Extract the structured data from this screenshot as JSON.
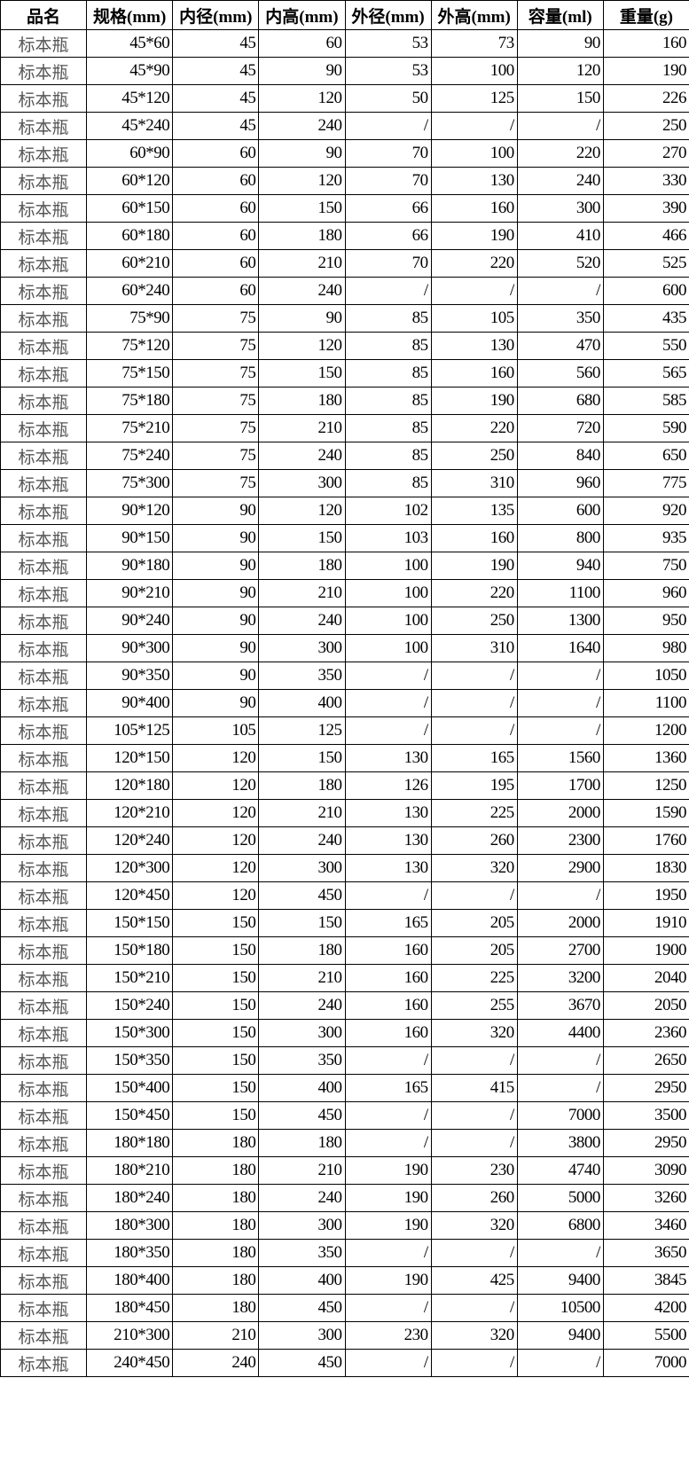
{
  "table": {
    "headers": [
      "品名",
      "规格(mm)",
      "内径(mm)",
      "内高(mm)",
      "外径(mm)",
      "外高(mm)",
      "容量(ml)",
      "重量(g)"
    ],
    "rows": [
      [
        "标本瓶",
        "45*60",
        "45",
        "60",
        "53",
        "73",
        "90",
        "160"
      ],
      [
        "标本瓶",
        "45*90",
        "45",
        "90",
        "53",
        "100",
        "120",
        "190"
      ],
      [
        "标本瓶",
        "45*120",
        "45",
        "120",
        "50",
        "125",
        "150",
        "226"
      ],
      [
        "标本瓶",
        "45*240",
        "45",
        "240",
        "/",
        "/",
        "/",
        "250"
      ],
      [
        "标本瓶",
        "60*90",
        "60",
        "90",
        "70",
        "100",
        "220",
        "270"
      ],
      [
        "标本瓶",
        "60*120",
        "60",
        "120",
        "70",
        "130",
        "240",
        "330"
      ],
      [
        "标本瓶",
        "60*150",
        "60",
        "150",
        "66",
        "160",
        "300",
        "390"
      ],
      [
        "标本瓶",
        "60*180",
        "60",
        "180",
        "66",
        "190",
        "410",
        "466"
      ],
      [
        "标本瓶",
        "60*210",
        "60",
        "210",
        "70",
        "220",
        "520",
        "525"
      ],
      [
        "标本瓶",
        "60*240",
        "60",
        "240",
        "/",
        "/",
        "/",
        "600"
      ],
      [
        "标本瓶",
        "75*90",
        "75",
        "90",
        "85",
        "105",
        "350",
        "435"
      ],
      [
        "标本瓶",
        "75*120",
        "75",
        "120",
        "85",
        "130",
        "470",
        "550"
      ],
      [
        "标本瓶",
        "75*150",
        "75",
        "150",
        "85",
        "160",
        "560",
        "565"
      ],
      [
        "标本瓶",
        "75*180",
        "75",
        "180",
        "85",
        "190",
        "680",
        "585"
      ],
      [
        "标本瓶",
        "75*210",
        "75",
        "210",
        "85",
        "220",
        "720",
        "590"
      ],
      [
        "标本瓶",
        "75*240",
        "75",
        "240",
        "85",
        "250",
        "840",
        "650"
      ],
      [
        "标本瓶",
        "75*300",
        "75",
        "300",
        "85",
        "310",
        "960",
        "775"
      ],
      [
        "标本瓶",
        "90*120",
        "90",
        "120",
        "102",
        "135",
        "600",
        "920"
      ],
      [
        "标本瓶",
        "90*150",
        "90",
        "150",
        "103",
        "160",
        "800",
        "935"
      ],
      [
        "标本瓶",
        "90*180",
        "90",
        "180",
        "100",
        "190",
        "940",
        "750"
      ],
      [
        "标本瓶",
        "90*210",
        "90",
        "210",
        "100",
        "220",
        "1100",
        "960"
      ],
      [
        "标本瓶",
        "90*240",
        "90",
        "240",
        "100",
        "250",
        "1300",
        "950"
      ],
      [
        "标本瓶",
        "90*300",
        "90",
        "300",
        "100",
        "310",
        "1640",
        "980"
      ],
      [
        "标本瓶",
        "90*350",
        "90",
        "350",
        "/",
        "/",
        "/",
        "1050"
      ],
      [
        "标本瓶",
        "90*400",
        "90",
        "400",
        "/",
        "/",
        "/",
        "1100"
      ],
      [
        "标本瓶",
        "105*125",
        "105",
        "125",
        "/",
        "/",
        "/",
        "1200"
      ],
      [
        "标本瓶",
        "120*150",
        "120",
        "150",
        "130",
        "165",
        "1560",
        "1360"
      ],
      [
        "标本瓶",
        "120*180",
        "120",
        "180",
        "126",
        "195",
        "1700",
        "1250"
      ],
      [
        "标本瓶",
        "120*210",
        "120",
        "210",
        "130",
        "225",
        "2000",
        "1590"
      ],
      [
        "标本瓶",
        "120*240",
        "120",
        "240",
        "130",
        "260",
        "2300",
        "1760"
      ],
      [
        "标本瓶",
        "120*300",
        "120",
        "300",
        "130",
        "320",
        "2900",
        "1830"
      ],
      [
        "标本瓶",
        "120*450",
        "120",
        "450",
        "/",
        "/",
        "/",
        "1950"
      ],
      [
        "标本瓶",
        "150*150",
        "150",
        "150",
        "165",
        "205",
        "2000",
        "1910"
      ],
      [
        "标本瓶",
        "150*180",
        "150",
        "180",
        "160",
        "205",
        "2700",
        "1900"
      ],
      [
        "标本瓶",
        "150*210",
        "150",
        "210",
        "160",
        "225",
        "3200",
        "2040"
      ],
      [
        "标本瓶",
        "150*240",
        "150",
        "240",
        "160",
        "255",
        "3670",
        "2050"
      ],
      [
        "标本瓶",
        "150*300",
        "150",
        "300",
        "160",
        "320",
        "4400",
        "2360"
      ],
      [
        "标本瓶",
        "150*350",
        "150",
        "350",
        "/",
        "/",
        "/",
        "2650"
      ],
      [
        "标本瓶",
        "150*400",
        "150",
        "400",
        "165",
        "415",
        "/",
        "2950"
      ],
      [
        "标本瓶",
        "150*450",
        "150",
        "450",
        "/",
        "/",
        "7000",
        "3500"
      ],
      [
        "标本瓶",
        "180*180",
        "180",
        "180",
        "/",
        "/",
        "3800",
        "2950"
      ],
      [
        "标本瓶",
        "180*210",
        "180",
        "210",
        "190",
        "230",
        "4740",
        "3090"
      ],
      [
        "标本瓶",
        "180*240",
        "180",
        "240",
        "190",
        "260",
        "5000",
        "3260"
      ],
      [
        "标本瓶",
        "180*300",
        "180",
        "300",
        "190",
        "320",
        "6800",
        "3460"
      ],
      [
        "标本瓶",
        "180*350",
        "180",
        "350",
        "/",
        "/",
        "/",
        "3650"
      ],
      [
        "标本瓶",
        "180*400",
        "180",
        "400",
        "190",
        "425",
        "9400",
        "3845"
      ],
      [
        "标本瓶",
        "180*450",
        "180",
        "450",
        "/",
        "/",
        "10500",
        "4200"
      ],
      [
        "标本瓶",
        "210*300",
        "210",
        "300",
        "230",
        "320",
        "9400",
        "5500"
      ],
      [
        "标本瓶",
        "240*450",
        "240",
        "450",
        "/",
        "/",
        "/",
        "7000"
      ]
    ]
  }
}
